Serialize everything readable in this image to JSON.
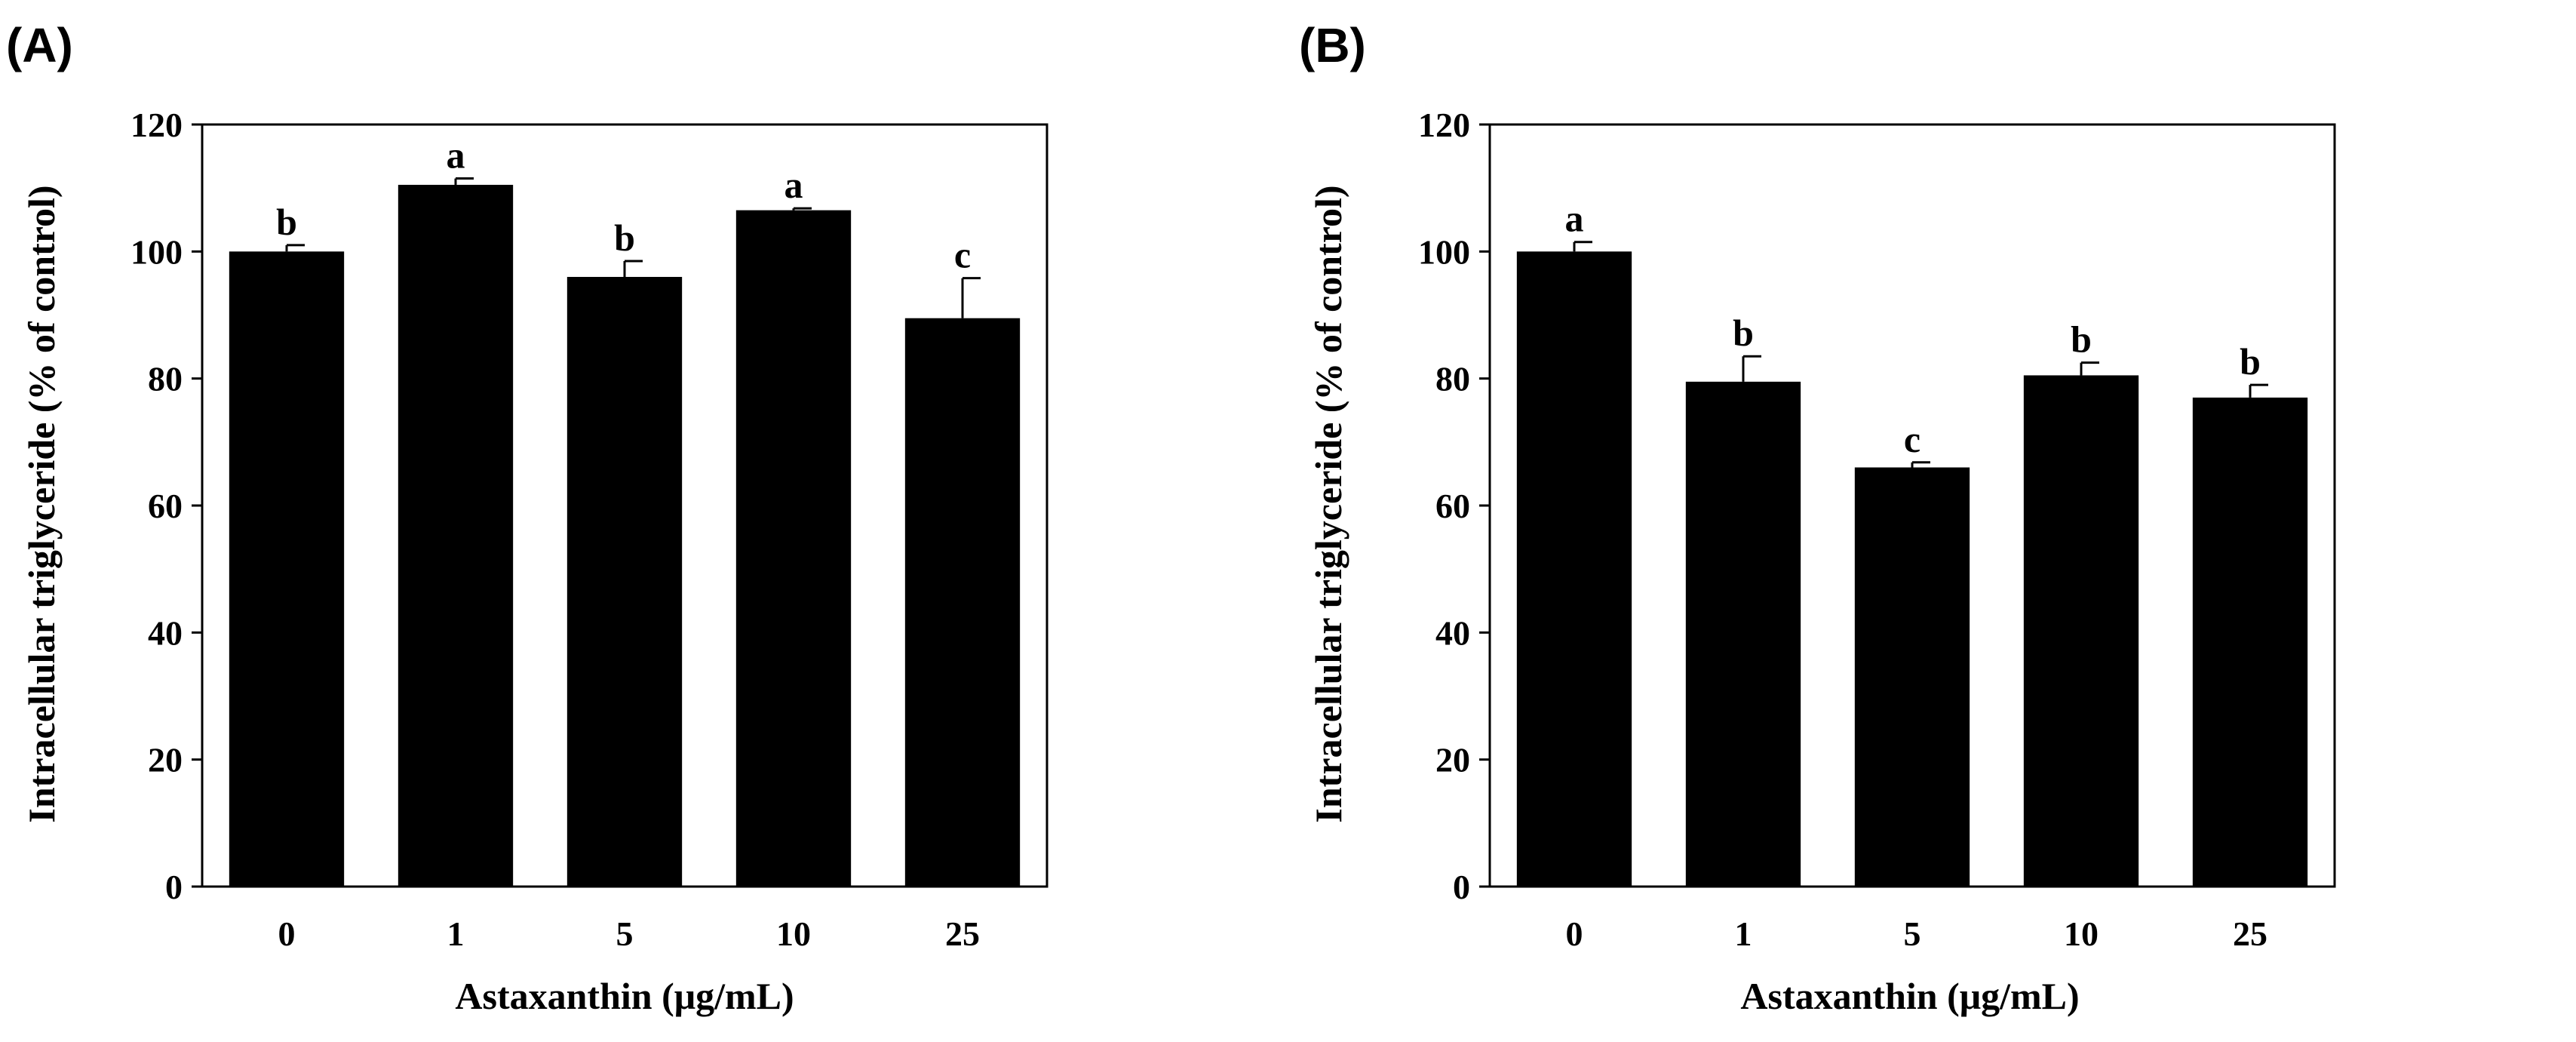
{
  "chart_data": [
    {
      "type": "bar",
      "panel_label": "(A)",
      "categories": [
        "0",
        "1",
        "5",
        "10",
        "25"
      ],
      "values": [
        100,
        110.5,
        96,
        106.5,
        89.5
      ],
      "errors": [
        1,
        1,
        2.5,
        0.3,
        6.3
      ],
      "significance": [
        "b",
        "a",
        "b",
        "a",
        "c"
      ],
      "xlabel": "Astaxanthin (μg/mL)",
      "ylabel": "Intracellular triglyceride (% of control)",
      "ylim": [
        0,
        120
      ],
      "yticks": [
        0,
        20,
        40,
        60,
        80,
        100,
        120
      ],
      "bar_color": "#000000",
      "grid": false
    },
    {
      "type": "bar",
      "panel_label": "(B)",
      "categories": [
        "0",
        "1",
        "5",
        "10",
        "25"
      ],
      "values": [
        100,
        79.5,
        66,
        80.5,
        77
      ],
      "errors": [
        1.5,
        4,
        0.8,
        2,
        2
      ],
      "significance": [
        "a",
        "b",
        "c",
        "b",
        "b"
      ],
      "xlabel": "Astaxanthin (μg/mL)",
      "ylabel": "Intracellular triglyceride (% of control)",
      "ylim": [
        0,
        120
      ],
      "yticks": [
        0,
        20,
        40,
        60,
        80,
        100,
        120
      ],
      "bar_color": "#000000",
      "grid": false
    }
  ]
}
